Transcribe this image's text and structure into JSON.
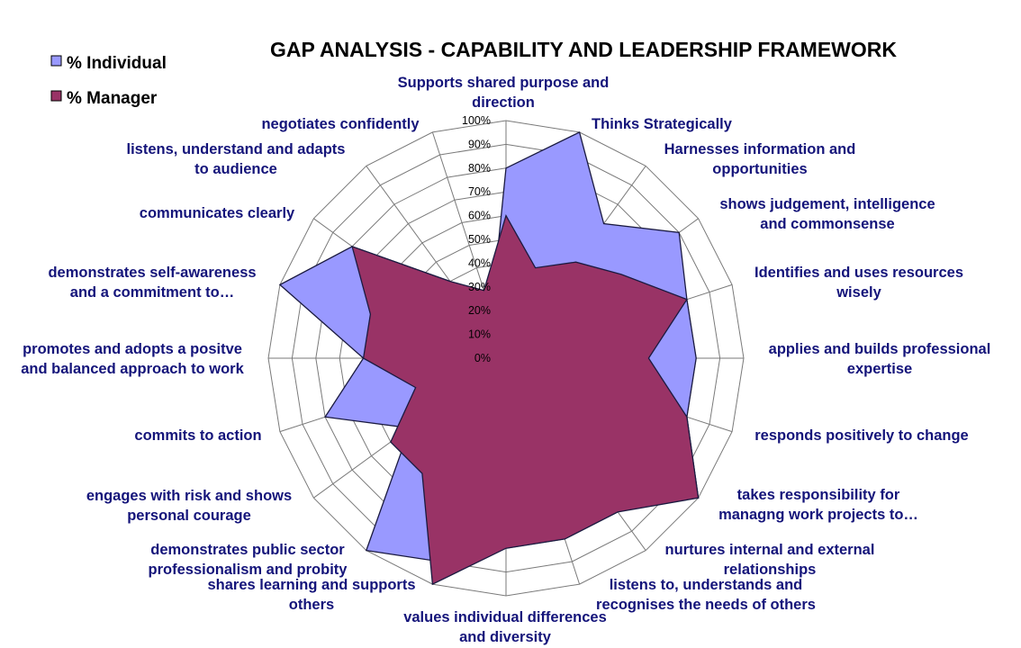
{
  "chart_data": {
    "type": "radar",
    "title": "GAP ANALYSIS  - CAPABILITY AND LEADERSHIP FRAMEWORK",
    "categories": [
      [
        "Supports shared purpose and",
        "direction"
      ],
      [
        "Thinks Strategically"
      ],
      [
        "Harnesses information and",
        "opportunities"
      ],
      [
        "shows judgement, intelligence",
        "and commonsense"
      ],
      [
        "Identifies and uses resources",
        "wisely"
      ],
      [
        "applies and builds professional",
        "expertise"
      ],
      [
        "responds positively to change"
      ],
      [
        "takes responsibility for",
        "managng work projects to…"
      ],
      [
        "nurtures internal and external",
        "relationships"
      ],
      [
        "listens to, understands and",
        "recognises the needs of others"
      ],
      [
        "values individual differences",
        "and diversity"
      ],
      [
        "shares learning and supports",
        "others"
      ],
      [
        "demonstrates public sector",
        "professionalism and probity"
      ],
      [
        "engages with risk and shows",
        "personal courage"
      ],
      [
        "commits to action"
      ],
      [
        "promotes and adopts a positve",
        "and balanced approach to work"
      ],
      [
        "demonstrates self-awareness",
        "and a commitment to…"
      ],
      [
        "communicates clearly"
      ],
      [
        "listens, understand and adapts",
        "to audience"
      ],
      [
        "negotiates confidently"
      ]
    ],
    "series": [
      {
        "name": "% Individual",
        "color": "#9999ff",
        "values": [
          80,
          100,
          70,
          90,
          80,
          80,
          80,
          100,
          50,
          60,
          70,
          90,
          100,
          50,
          80,
          60,
          100,
          80,
          40,
          20
        ]
      },
      {
        "name": "% Manager",
        "color": "#993366",
        "values": [
          60,
          40,
          50,
          60,
          80,
          60,
          80,
          100,
          80,
          80,
          80,
          100,
          60,
          60,
          40,
          60,
          60,
          80,
          40,
          30
        ]
      }
    ],
    "rlim": [
      0,
      100
    ],
    "ticks": [
      "0%",
      "10%",
      "20%",
      "30%",
      "40%",
      "50%",
      "60%",
      "70%",
      "80%",
      "90%",
      "100%"
    ],
    "legend_position": "top-left",
    "grid": true
  }
}
